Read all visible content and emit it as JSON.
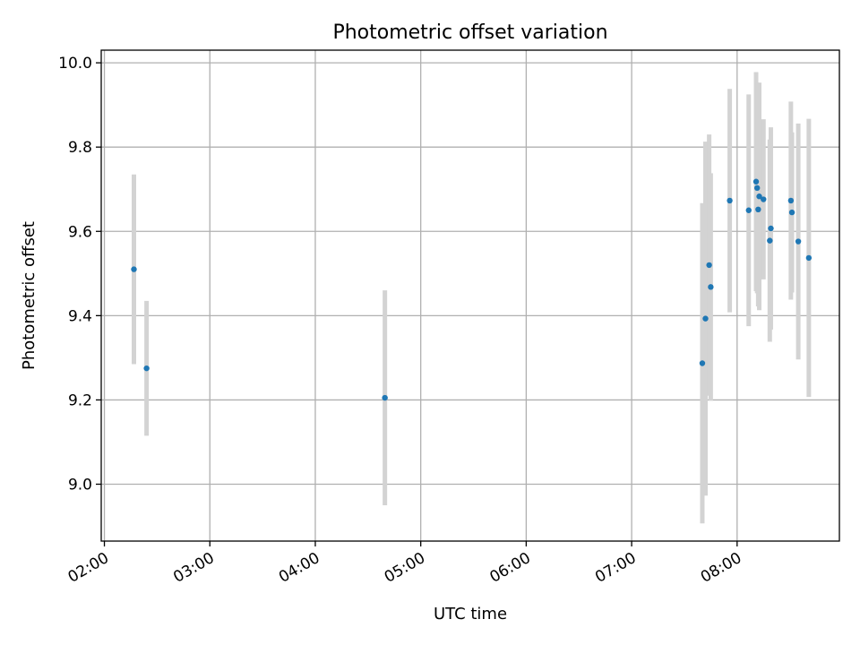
{
  "chart_data": {
    "type": "scatter",
    "title": "Photometric offset variation",
    "xlabel": "UTC time",
    "ylabel": "Photometric offset",
    "x_unit": "hours UTC",
    "xlim": [
      1.97,
      8.97
    ],
    "ylim": [
      8.865,
      10.03
    ],
    "xticks": [
      2,
      3,
      4,
      5,
      6,
      7,
      8
    ],
    "xtick_labels": [
      "02:00",
      "03:00",
      "04:00",
      "05:00",
      "06:00",
      "07:00",
      "08:00"
    ],
    "yticks": [
      9.0,
      9.2,
      9.4,
      9.6,
      9.8,
      10.0
    ],
    "ytick_labels": [
      "9.0",
      "9.2",
      "9.4",
      "9.6",
      "9.8",
      "10.0"
    ],
    "grid": true,
    "marker_color": "#1f77b4",
    "errorbar_color": "#d3d3d3",
    "points": [
      {
        "x": 2.28,
        "y": 9.51,
        "err": 0.225
      },
      {
        "x": 2.4,
        "y": 9.275,
        "err": 0.16
      },
      {
        "x": 4.66,
        "y": 9.205,
        "err": 0.255
      },
      {
        "x": 7.67,
        "y": 9.287,
        "err": 0.38
      },
      {
        "x": 7.7,
        "y": 9.393,
        "err": 0.42
      },
      {
        "x": 7.735,
        "y": 9.52,
        "err": 0.31
      },
      {
        "x": 7.75,
        "y": 9.468,
        "err": 0.27
      },
      {
        "x": 7.93,
        "y": 9.673,
        "err": 0.265
      },
      {
        "x": 8.11,
        "y": 9.65,
        "err": 0.275
      },
      {
        "x": 8.18,
        "y": 9.718,
        "err": 0.26
      },
      {
        "x": 8.19,
        "y": 9.703,
        "err": 0.25
      },
      {
        "x": 8.2,
        "y": 9.652,
        "err": 0.23
      },
      {
        "x": 8.21,
        "y": 9.683,
        "err": 0.27
      },
      {
        "x": 8.25,
        "y": 9.676,
        "err": 0.19
      },
      {
        "x": 8.31,
        "y": 9.578,
        "err": 0.24
      },
      {
        "x": 8.32,
        "y": 9.607,
        "err": 0.24
      },
      {
        "x": 8.51,
        "y": 9.673,
        "err": 0.235
      },
      {
        "x": 8.52,
        "y": 9.645,
        "err": 0.19
      },
      {
        "x": 8.58,
        "y": 9.576,
        "err": 0.28
      },
      {
        "x": 8.68,
        "y": 9.537,
        "err": 0.33
      }
    ]
  }
}
